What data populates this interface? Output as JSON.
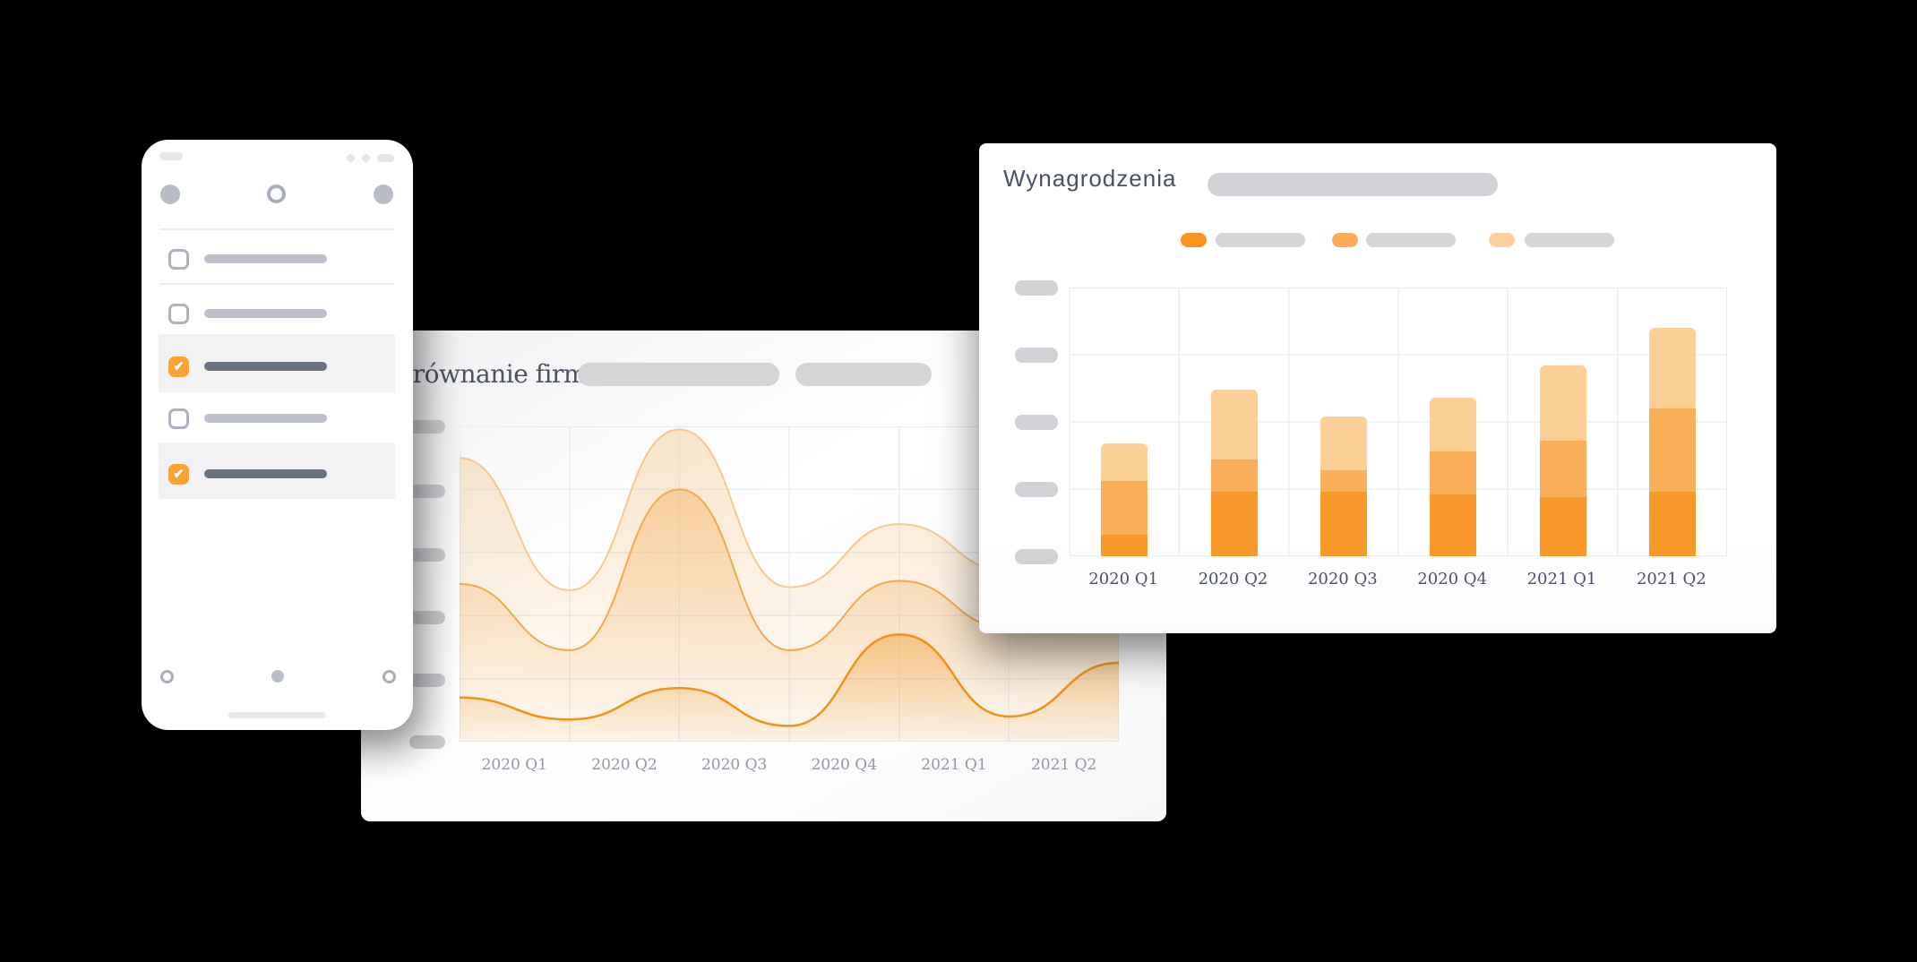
{
  "background_color": "#000000",
  "accent_orange": "#F9A335",
  "phone_panel": {
    "status_bar": {
      "left_pill": true,
      "right_dots": 2,
      "right_pill": true
    },
    "top_nav": {
      "left_circle": "filled",
      "center_circle": "outlined",
      "right_circle": "filled"
    },
    "checklist_rows": [
      {
        "checked": false
      },
      {
        "checked": false
      },
      {
        "checked": true
      },
      {
        "checked": false
      },
      {
        "checked": true
      }
    ],
    "bottom_nav": {
      "left_circle": "outlined",
      "center_circle": "filled",
      "right_circle": "outlined"
    },
    "home_indicator": true
  },
  "mid_card": {
    "title": "porównanie firm",
    "header_placeholder_pills": 2,
    "y_axis_pill_count": 6,
    "x_labels": [
      "2020 Q1",
      "2020 Q2",
      "2020 Q3",
      "2020 Q4",
      "2021 Q1",
      "2021 Q2"
    ]
  },
  "right_card": {
    "title": "Wynagrodzenia",
    "header_placeholder_pill": 1,
    "y_axis_pill_count": 5,
    "legend": [
      {
        "color": "#F99420",
        "label_placeholder": true
      },
      {
        "color": "#FBAD56",
        "label_placeholder": true
      },
      {
        "color": "#FDCF9A",
        "label_placeholder": true
      }
    ],
    "x_labels": [
      "2020 Q1",
      "2020 Q2",
      "2020 Q3",
      "2020 Q4",
      "2021 Q1",
      "2021 Q2"
    ]
  },
  "chart_data": [
    {
      "type": "area",
      "title": "porównanie firm",
      "x_tick_labels": [
        "2020 Q1",
        "2020 Q2",
        "2020 Q3",
        "2020 Q4",
        "2021 Q1",
        "2021 Q2"
      ],
      "note": "3 overlapping smoothed area series; 7 curve points span left edge to right edge, labels sit between gridlines; values are % of plot height (y-axis labels are placeholder pills)",
      "ylim": [
        0,
        100
      ],
      "grid": true,
      "series": [
        {
          "name": "light-orange-area",
          "color": "#F5C98E",
          "values": [
            90,
            48,
            99,
            49,
            69,
            54,
            79
          ]
        },
        {
          "name": "medium-orange-area",
          "color": "#F5A94F",
          "values": [
            50,
            29,
            80,
            29,
            51,
            36,
            46
          ]
        },
        {
          "name": "dark-orange-area",
          "color": "#F0921C",
          "values": [
            14,
            7,
            17,
            5,
            34,
            8,
            25
          ]
        }
      ]
    },
    {
      "type": "bar",
      "subtype": "stacked",
      "title": "Wynagrodzenia",
      "categories": [
        "2020 Q1",
        "2020 Q2",
        "2020 Q3",
        "2020 Q4",
        "2021 Q1",
        "2021 Q2"
      ],
      "note": "stacked totals 42,62,52,59,71,85 (% of plot height; y-axis labels are placeholder pills)",
      "ylim": [
        0,
        100
      ],
      "grid": true,
      "legend_position": "top",
      "series": [
        {
          "name": "bottom-dark-orange",
          "color": "#F9992B",
          "values": [
            8,
            24,
            24,
            23,
            22,
            24
          ]
        },
        {
          "name": "middle-medium-orange",
          "color": "#FAAF58",
          "values": [
            20,
            12,
            8,
            16,
            21,
            31
          ]
        },
        {
          "name": "top-light-orange",
          "color": "#FCCF96",
          "values": [
            14,
            26,
            20,
            20,
            28,
            30
          ]
        }
      ]
    }
  ],
  "ui_colors": {
    "grid_line": "#e4edf3",
    "placeholder_pill": "#d5d5d8",
    "y_axis_pill": "#d0d2d6",
    "checkbox_border": "#adb2bc",
    "row_line_gray": "#bcc1c9",
    "row_line_dark": "#6a7280",
    "row_band": "#f2f2f4",
    "mid_axis_text": "#9298a3",
    "right_axis_text": "#4a5168",
    "title_text": "#4a5161"
  }
}
